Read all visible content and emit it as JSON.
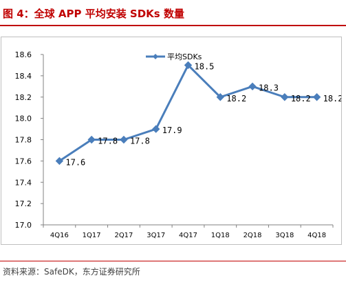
{
  "figure_title": "图 4：全球 APP 平均安装 SDKs 数量",
  "source_note": "资料来源：SafeDK，东方证券研究所",
  "colors": {
    "title": "#c00000",
    "series": "#4a7ebb",
    "axis": "#808080",
    "text": "#000000"
  },
  "chart_data": {
    "type": "line",
    "title": "",
    "xlabel": "",
    "ylabel": "",
    "categories": [
      "4Q16",
      "1Q17",
      "2Q17",
      "3Q17",
      "4Q17",
      "1Q18",
      "2Q18",
      "3Q18",
      "4Q18"
    ],
    "series": [
      {
        "name": "平均SDKs",
        "values": [
          17.6,
          17.8,
          17.8,
          17.9,
          18.5,
          18.2,
          18.3,
          18.2,
          18.2
        ],
        "marker": "diamond"
      }
    ],
    "data_labels": [
      "17.6",
      "17.8",
      "17.8",
      "17.9",
      "18.5",
      "18.2",
      "18.3",
      "18.2",
      "18.2"
    ],
    "ylim": [
      17.0,
      18.6
    ],
    "yticks": [
      "17.0",
      "17.2",
      "17.4",
      "17.6",
      "17.8",
      "18.0",
      "18.2",
      "18.4",
      "18.6"
    ],
    "grid": false,
    "legend_position": "top-center"
  }
}
